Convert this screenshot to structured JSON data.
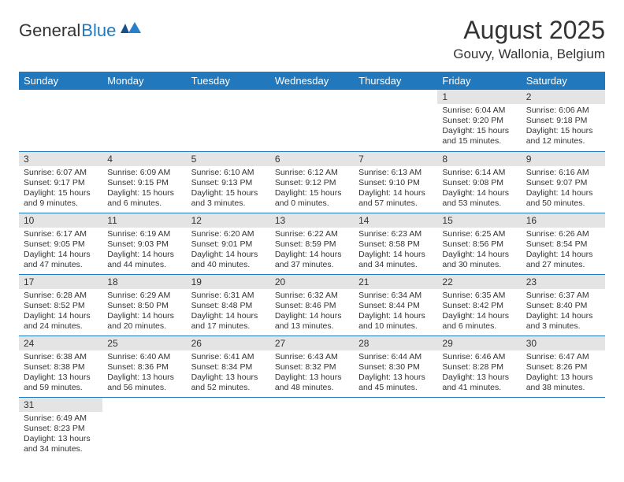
{
  "logo": {
    "text1": "General",
    "text2": "Blue"
  },
  "title": "August 2025",
  "location": "Gouvy, Wallonia, Belgium",
  "colors": {
    "header_bg": "#2178bc",
    "header_text": "#ffffff",
    "daynum_bg": "#e4e4e4",
    "text": "#333333",
    "accent": "#2178bc"
  },
  "daysOfWeek": [
    "Sunday",
    "Monday",
    "Tuesday",
    "Wednesday",
    "Thursday",
    "Friday",
    "Saturday"
  ],
  "firstWeekday": 5,
  "numDays": 31,
  "days": {
    "1": {
      "sunrise": "6:04 AM",
      "sunset": "9:20 PM",
      "daylight": "15 hours and 15 minutes."
    },
    "2": {
      "sunrise": "6:06 AM",
      "sunset": "9:18 PM",
      "daylight": "15 hours and 12 minutes."
    },
    "3": {
      "sunrise": "6:07 AM",
      "sunset": "9:17 PM",
      "daylight": "15 hours and 9 minutes."
    },
    "4": {
      "sunrise": "6:09 AM",
      "sunset": "9:15 PM",
      "daylight": "15 hours and 6 minutes."
    },
    "5": {
      "sunrise": "6:10 AM",
      "sunset": "9:13 PM",
      "daylight": "15 hours and 3 minutes."
    },
    "6": {
      "sunrise": "6:12 AM",
      "sunset": "9:12 PM",
      "daylight": "15 hours and 0 minutes."
    },
    "7": {
      "sunrise": "6:13 AM",
      "sunset": "9:10 PM",
      "daylight": "14 hours and 57 minutes."
    },
    "8": {
      "sunrise": "6:14 AM",
      "sunset": "9:08 PM",
      "daylight": "14 hours and 53 minutes."
    },
    "9": {
      "sunrise": "6:16 AM",
      "sunset": "9:07 PM",
      "daylight": "14 hours and 50 minutes."
    },
    "10": {
      "sunrise": "6:17 AM",
      "sunset": "9:05 PM",
      "daylight": "14 hours and 47 minutes."
    },
    "11": {
      "sunrise": "6:19 AM",
      "sunset": "9:03 PM",
      "daylight": "14 hours and 44 minutes."
    },
    "12": {
      "sunrise": "6:20 AM",
      "sunset": "9:01 PM",
      "daylight": "14 hours and 40 minutes."
    },
    "13": {
      "sunrise": "6:22 AM",
      "sunset": "8:59 PM",
      "daylight": "14 hours and 37 minutes."
    },
    "14": {
      "sunrise": "6:23 AM",
      "sunset": "8:58 PM",
      "daylight": "14 hours and 34 minutes."
    },
    "15": {
      "sunrise": "6:25 AM",
      "sunset": "8:56 PM",
      "daylight": "14 hours and 30 minutes."
    },
    "16": {
      "sunrise": "6:26 AM",
      "sunset": "8:54 PM",
      "daylight": "14 hours and 27 minutes."
    },
    "17": {
      "sunrise": "6:28 AM",
      "sunset": "8:52 PM",
      "daylight": "14 hours and 24 minutes."
    },
    "18": {
      "sunrise": "6:29 AM",
      "sunset": "8:50 PM",
      "daylight": "14 hours and 20 minutes."
    },
    "19": {
      "sunrise": "6:31 AM",
      "sunset": "8:48 PM",
      "daylight": "14 hours and 17 minutes."
    },
    "20": {
      "sunrise": "6:32 AM",
      "sunset": "8:46 PM",
      "daylight": "14 hours and 13 minutes."
    },
    "21": {
      "sunrise": "6:34 AM",
      "sunset": "8:44 PM",
      "daylight": "14 hours and 10 minutes."
    },
    "22": {
      "sunrise": "6:35 AM",
      "sunset": "8:42 PM",
      "daylight": "14 hours and 6 minutes."
    },
    "23": {
      "sunrise": "6:37 AM",
      "sunset": "8:40 PM",
      "daylight": "14 hours and 3 minutes."
    },
    "24": {
      "sunrise": "6:38 AM",
      "sunset": "8:38 PM",
      "daylight": "13 hours and 59 minutes."
    },
    "25": {
      "sunrise": "6:40 AM",
      "sunset": "8:36 PM",
      "daylight": "13 hours and 56 minutes."
    },
    "26": {
      "sunrise": "6:41 AM",
      "sunset": "8:34 PM",
      "daylight": "13 hours and 52 minutes."
    },
    "27": {
      "sunrise": "6:43 AM",
      "sunset": "8:32 PM",
      "daylight": "13 hours and 48 minutes."
    },
    "28": {
      "sunrise": "6:44 AM",
      "sunset": "8:30 PM",
      "daylight": "13 hours and 45 minutes."
    },
    "29": {
      "sunrise": "6:46 AM",
      "sunset": "8:28 PM",
      "daylight": "13 hours and 41 minutes."
    },
    "30": {
      "sunrise": "6:47 AM",
      "sunset": "8:26 PM",
      "daylight": "13 hours and 38 minutes."
    },
    "31": {
      "sunrise": "6:49 AM",
      "sunset": "8:23 PM",
      "daylight": "13 hours and 34 minutes."
    }
  },
  "labels": {
    "sunrise": "Sunrise:",
    "sunset": "Sunset:",
    "daylight": "Daylight:"
  }
}
